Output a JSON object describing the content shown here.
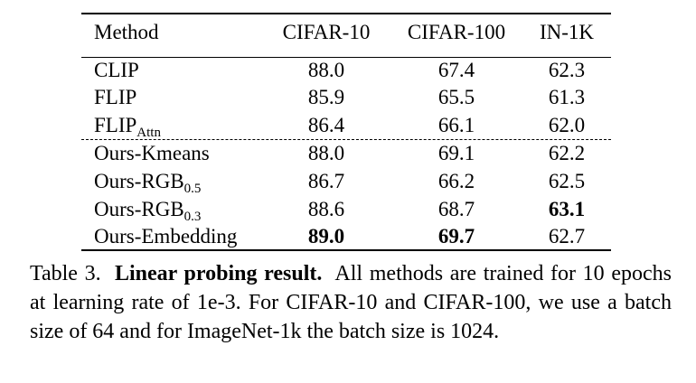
{
  "table": {
    "headers": [
      "Method",
      "CIFAR-10",
      "CIFAR-100",
      "IN-1K"
    ],
    "rows": [
      {
        "method": "CLIP",
        "sub": "",
        "values": [
          "88.0",
          "67.4",
          "62.3"
        ],
        "bold": [
          false,
          false,
          false
        ]
      },
      {
        "method": "FLIP",
        "sub": "",
        "values": [
          "85.9",
          "65.5",
          "61.3"
        ],
        "bold": [
          false,
          false,
          false
        ]
      },
      {
        "method": "FLIP",
        "sub": "Attn",
        "values": [
          "86.4",
          "66.1",
          "62.0"
        ],
        "bold": [
          false,
          false,
          false
        ]
      },
      {
        "method": "Ours-Kmeans",
        "sub": "",
        "values": [
          "88.0",
          "69.1",
          "62.2"
        ],
        "bold": [
          false,
          false,
          false
        ]
      },
      {
        "method": "Ours-RGB",
        "sub": "0.5",
        "values": [
          "86.7",
          "66.2",
          "62.5"
        ],
        "bold": [
          false,
          false,
          false
        ]
      },
      {
        "method": "Ours-RGB",
        "sub": "0.3",
        "values": [
          "88.6",
          "68.7",
          "63.1"
        ],
        "bold": [
          false,
          false,
          true
        ]
      },
      {
        "method": "Ours-Embedding",
        "sub": "",
        "values": [
          "89.0",
          "69.7",
          "62.7"
        ],
        "bold": [
          true,
          true,
          false
        ]
      }
    ]
  },
  "caption": {
    "label": "Table 3.",
    "title": "Linear probing result.",
    "text": "All methods are trained for 10 epochs at learning rate of 1e-3. For CIFAR-10 and CIFAR-100, we use a batch size of 64 and for ImageNet-1k the batch size is 1024."
  }
}
